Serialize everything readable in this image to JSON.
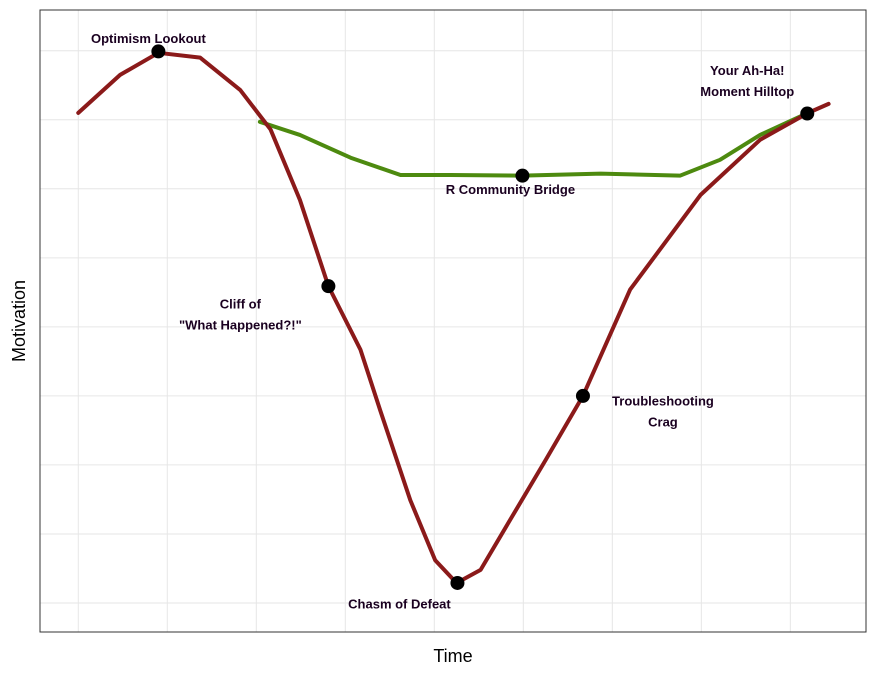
{
  "chart_data": {
    "type": "line",
    "xlabel": "Time",
    "ylabel": "Motivation",
    "xlim": [
      -0.43,
      8.85
    ],
    "ylim": [
      -0.42,
      8.59
    ],
    "xticks": [
      0,
      1,
      2,
      3,
      4,
      5,
      6,
      7,
      8
    ],
    "yticks": [
      0,
      1,
      2,
      3,
      4,
      5,
      6,
      7,
      8
    ],
    "tick_labels": false,
    "grid": true,
    "series": [
      {
        "color": "#8b1a1a",
        "x": [
          0,
          0.47,
          0.9,
          1.37,
          1.82,
          2.16,
          2.49,
          2.81,
          3.17,
          3.39,
          3.73,
          4.01,
          4.25,
          4.52,
          4.85,
          5.25,
          5.67,
          6.2,
          6.99,
          7.66,
          8.2,
          8.43
        ],
        "values": [
          7.1,
          7.65,
          7.97,
          7.9,
          7.43,
          6.86,
          5.84,
          4.59,
          3.67,
          2.8,
          1.49,
          0.62,
          0.29,
          0.48,
          1.2,
          2.07,
          3.0,
          4.54,
          5.91,
          6.71,
          7.1,
          7.23
        ]
      },
      {
        "color": "#4d8a0f",
        "x": [
          2.04,
          2.49,
          3.06,
          3.62,
          4.18,
          4.99,
          5.87,
          6.76,
          7.21,
          7.66,
          8.2
        ],
        "values": [
          6.97,
          6.78,
          6.45,
          6.2,
          6.2,
          6.19,
          6.22,
          6.19,
          6.42,
          6.78,
          7.1
        ]
      }
    ],
    "points": [
      {
        "label": [
          "Optimism Lookout"
        ],
        "x": 0.9,
        "y": 7.99
      },
      {
        "label": [
          "Cliff of",
          "\"What Happened?!\""
        ],
        "x": 2.81,
        "y": 4.59
      },
      {
        "label": [
          "Chasm of Defeat"
        ],
        "x": 4.26,
        "y": 0.29
      },
      {
        "label": [
          "R Community Bridge"
        ],
        "x": 4.99,
        "y": 6.19
      },
      {
        "label": [
          "Troubleshooting",
          "Crag"
        ],
        "x": 5.67,
        "y": 3.0
      },
      {
        "label": [
          "Your Ah-Ha!",
          "Moment Hilltop"
        ],
        "x": 8.19,
        "y": 7.09
      }
    ],
    "point_color": "#000000"
  }
}
